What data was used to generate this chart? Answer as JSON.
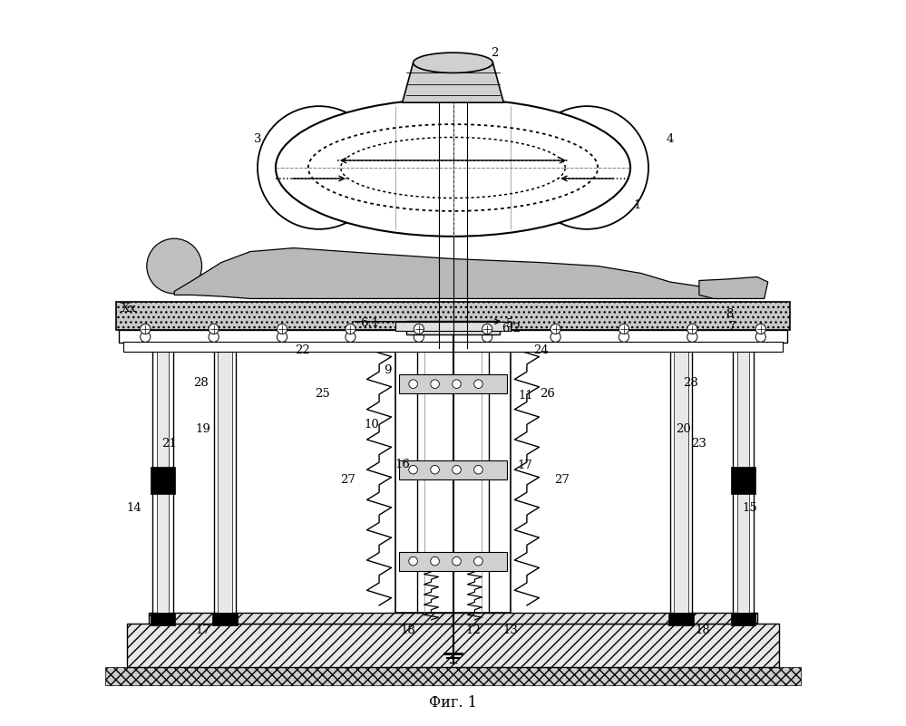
{
  "caption": "Фиг. 1",
  "bg_color": "#ffffff",
  "fig_width": 9.99,
  "fig_height": 8.01,
  "dpi": 100
}
